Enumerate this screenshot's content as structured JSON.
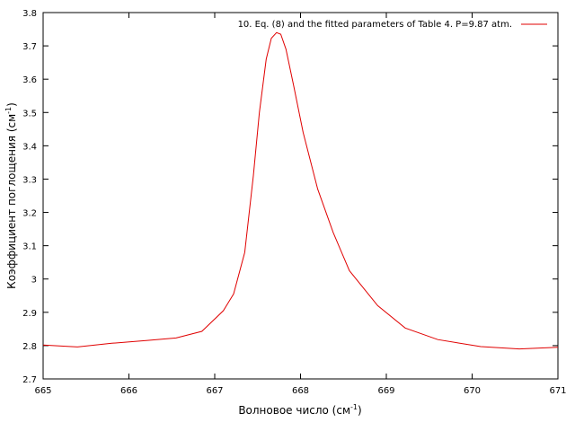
{
  "chart_data": {
    "type": "line",
    "xlabel": "Волновое число (см",
    "xlabel_sup": "-1",
    "xlabel_tail": ")",
    "ylabel": "Коэффициент поглощения (см",
    "ylabel_sup": "-1",
    "ylabel_tail": ")",
    "xlim": [
      665,
      671
    ],
    "ylim": [
      2.7,
      3.8
    ],
    "x_ticks": [
      "665",
      "666",
      "667",
      "668",
      "669",
      "670",
      "671"
    ],
    "y_ticks": [
      "2.7",
      "2.8",
      "2.9",
      "3",
      "3.1",
      "3.2",
      "3.3",
      "3.4",
      "3.5",
      "3.6",
      "3.7",
      "3.8"
    ],
    "grid": false,
    "legend_position": "top-right",
    "series": [
      {
        "name": "10. Eq. (8) and the fitted parameters of Table 4. P=9.87 atm.",
        "color": "#e00000",
        "x": [
          665.0,
          665.4,
          665.8,
          666.2,
          666.55,
          666.85,
          667.1,
          667.22,
          667.35,
          667.45,
          667.52,
          667.6,
          667.66,
          667.72,
          667.77,
          667.83,
          667.92,
          668.03,
          668.2,
          668.38,
          668.57,
          668.9,
          669.22,
          669.6,
          670.1,
          670.55,
          671.0
        ],
        "y": [
          2.802,
          2.796,
          2.807,
          2.815,
          2.823,
          2.843,
          2.905,
          2.955,
          3.08,
          3.31,
          3.5,
          3.66,
          3.723,
          3.74,
          3.735,
          3.69,
          3.58,
          3.44,
          3.27,
          3.14,
          3.025,
          2.92,
          2.853,
          2.818,
          2.797,
          2.79,
          2.795
        ]
      }
    ]
  }
}
